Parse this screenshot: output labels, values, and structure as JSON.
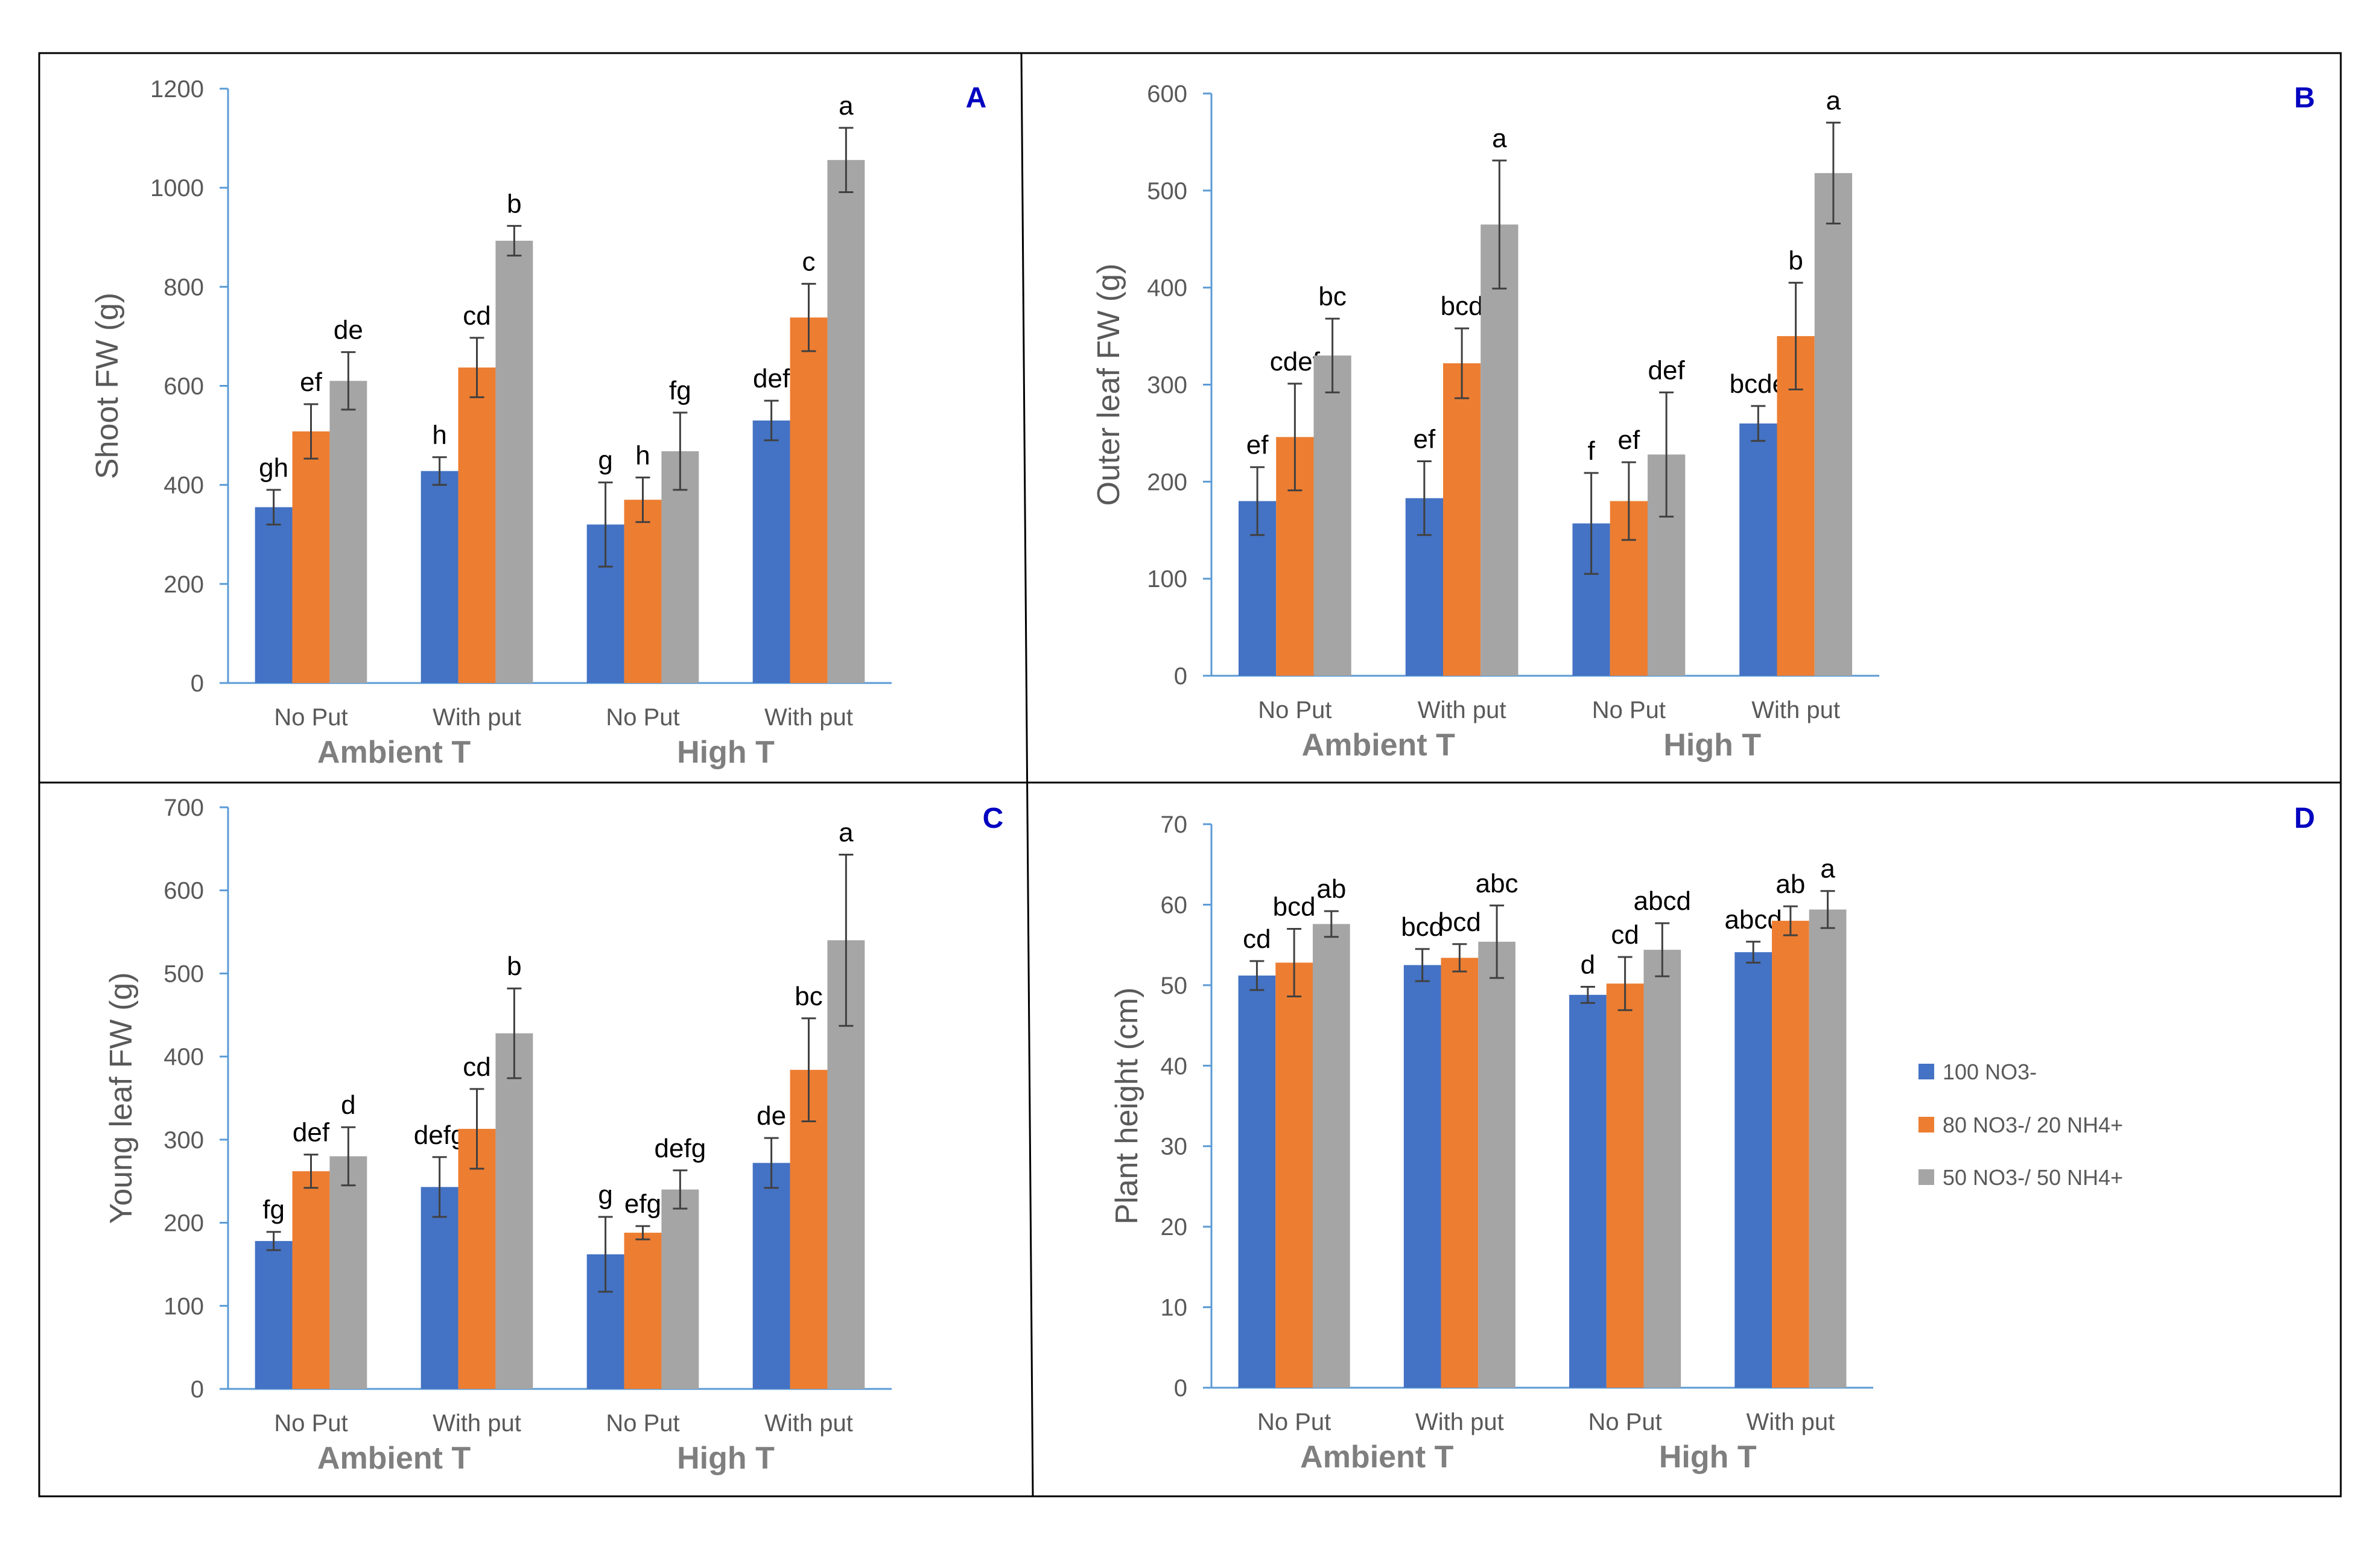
{
  "colors": {
    "series": [
      "#4472c4",
      "#ed7d31",
      "#a5a5a5"
    ],
    "axis": "#5b9bd5",
    "panel_letter": "#0000c0",
    "border": "#000000"
  },
  "legend": {
    "entries": [
      "100 NO3-",
      "80 NO3-/ 20 NH4+",
      "50 NO3-/ 50 NH4+"
    ]
  },
  "chart_data": [
    {
      "panel": "A",
      "type": "bar",
      "ylabel": "Shoot FW (g)",
      "ylim": [
        0,
        1200
      ],
      "yticks": [
        0,
        200,
        400,
        600,
        800,
        1000,
        1200
      ],
      "categories": [
        "No Put",
        "With put",
        "No Put",
        "With put"
      ],
      "groups": [
        "Ambient T",
        "High T"
      ],
      "series": [
        {
          "name": "100 NO3-",
          "values": [
            355,
            428,
            320,
            530
          ],
          "errors": [
            35,
            28,
            85,
            40
          ],
          "letters": [
            "gh",
            "h",
            "g",
            "def"
          ]
        },
        {
          "name": "80 NO3-/ 20 NH4+",
          "values": [
            508,
            637,
            370,
            738
          ],
          "errors": [
            55,
            60,
            45,
            68
          ],
          "letters": [
            "ef",
            "cd",
            "h",
            "c"
          ]
        },
        {
          "name": "50 NO3-/ 50 NH4+",
          "values": [
            610,
            893,
            468,
            1056
          ],
          "errors": [
            58,
            30,
            78,
            65
          ],
          "letters": [
            "de",
            "b",
            "fg",
            "a"
          ]
        }
      ]
    },
    {
      "panel": "B",
      "type": "bar",
      "ylabel": "Outer leaf FW  (g)",
      "ylim": [
        0,
        600
      ],
      "yticks": [
        0,
        100,
        200,
        300,
        400,
        500,
        600
      ],
      "categories": [
        "No Put",
        "With put",
        "No Put",
        "With put"
      ],
      "groups": [
        "Ambient T",
        "High T"
      ],
      "series": [
        {
          "name": "100 NO3-",
          "values": [
            180,
            183,
            157,
            260
          ],
          "errors": [
            35,
            38,
            52,
            18
          ],
          "letters": [
            "ef",
            "ef",
            "f",
            "bcde"
          ]
        },
        {
          "name": "80 NO3-/ 20 NH4+",
          "values": [
            246,
            322,
            180,
            350
          ],
          "errors": [
            55,
            36,
            40,
            55
          ],
          "letters": [
            "cdef",
            "bcd",
            "ef",
            "b"
          ]
        },
        {
          "name": "50 NO3-/ 50 NH4+",
          "values": [
            330,
            465,
            228,
            518
          ],
          "errors": [
            38,
            66,
            64,
            52
          ],
          "letters": [
            "bc",
            "a",
            "def",
            "a"
          ]
        }
      ]
    },
    {
      "panel": "C",
      "type": "bar",
      "ylabel": "Young leaf FW (g)",
      "ylim": [
        0,
        700
      ],
      "yticks": [
        0,
        100,
        200,
        300,
        400,
        500,
        600,
        700
      ],
      "categories": [
        "No Put",
        "With put",
        "No Put",
        "With put"
      ],
      "groups": [
        "Ambient T",
        "High T"
      ],
      "series": [
        {
          "name": "100 NO3-",
          "values": [
            178,
            243,
            162,
            272
          ],
          "errors": [
            11,
            36,
            45,
            30
          ],
          "letters": [
            "fg",
            "defg",
            "g",
            "de"
          ]
        },
        {
          "name": "80 NO3-/ 20 NH4+",
          "values": [
            262,
            313,
            188,
            384
          ],
          "errors": [
            20,
            48,
            8,
            62
          ],
          "letters": [
            "def",
            "cd",
            "efg",
            "bc"
          ]
        },
        {
          "name": "50 NO3-/ 50 NH4+",
          "values": [
            280,
            428,
            240,
            540
          ],
          "errors": [
            35,
            54,
            23,
            103
          ],
          "letters": [
            "d",
            "b",
            "defg",
            "a"
          ]
        }
      ]
    },
    {
      "panel": "D",
      "type": "bar",
      "ylabel": "Plant height (cm)",
      "ylim": [
        0,
        70
      ],
      "yticks": [
        0,
        10,
        20,
        30,
        40,
        50,
        60,
        70
      ],
      "categories": [
        "No Put",
        "With put",
        "No Put",
        "With put"
      ],
      "groups": [
        "Ambient T",
        "High T"
      ],
      "series": [
        {
          "name": "100 NO3-",
          "values": [
            51.2,
            52.5,
            48.8,
            54.1
          ],
          "errors": [
            1.8,
            2.0,
            1.0,
            1.3
          ],
          "letters": [
            "cd",
            "bcd",
            "d",
            "abcd"
          ]
        },
        {
          "name": "80 NO3-/ 20 NH4+",
          "values": [
            52.8,
            53.4,
            50.2,
            58.0
          ],
          "errors": [
            4.2,
            1.7,
            3.3,
            1.8
          ],
          "letters": [
            "bcd",
            "bcd",
            "cd",
            "ab"
          ]
        },
        {
          "name": "50 NO3-/ 50 NH4+",
          "values": [
            57.6,
            55.4,
            54.4,
            59.4
          ],
          "errors": [
            1.6,
            4.5,
            3.3,
            2.3
          ],
          "letters": [
            "ab",
            "abc",
            "abcd",
            "a"
          ]
        }
      ]
    }
  ]
}
